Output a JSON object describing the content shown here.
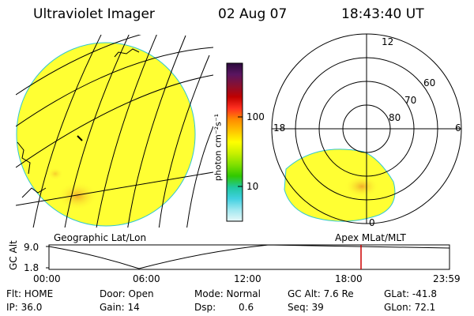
{
  "header": {
    "instrument": "Ultraviolet Imager",
    "date": "02 Aug 07",
    "time": "18:43:40 UT"
  },
  "colorbar": {
    "unit_label": "photon cm⁻²s⁻¹",
    "ticks": [
      "100",
      "10"
    ],
    "scale": "log",
    "colors_top_to_bottom": [
      "#2b0a3d",
      "#5a1560",
      "#8a1030",
      "#c00000",
      "#ff3020",
      "#ff8c00",
      "#ffc400",
      "#ffff00",
      "#c8f000",
      "#80e000",
      "#30c800",
      "#20c8a0",
      "#40d0e0",
      "#a0e8f0",
      "#e8f8f8"
    ]
  },
  "geo_panel": {
    "label": "Geographic Lat/Lon",
    "fill_color": "#ffff33",
    "hotspot_color": "#f2b830"
  },
  "polar_panel": {
    "label": "Apex MLat/MLT",
    "mlt_labels": [
      "12",
      "18",
      "6",
      "0"
    ],
    "lat_labels": [
      "60",
      "70",
      "80"
    ]
  },
  "altitude_plot": {
    "y_label": "GC Alt",
    "y_ticks": [
      "9.0",
      "1.8"
    ],
    "x_ticks": [
      "00:00",
      "06:00",
      "12:00",
      "18:00",
      "23:59"
    ],
    "current_time_marker": "18:43",
    "marker_color": "#cc0000"
  },
  "status": {
    "filter": "Flt: HOME",
    "ip": "IP: 36.0",
    "door": "Door: Open",
    "gain": "Gain: 14",
    "mode": "Mode: Normal",
    "dsp_label": "Dsp:",
    "dsp_value": "0.6",
    "gc_alt": "GC Alt: 7.6 Re",
    "seq": "Seq: 39",
    "glat": "GLat: -41.8",
    "glon": "GLon: 72.1"
  }
}
